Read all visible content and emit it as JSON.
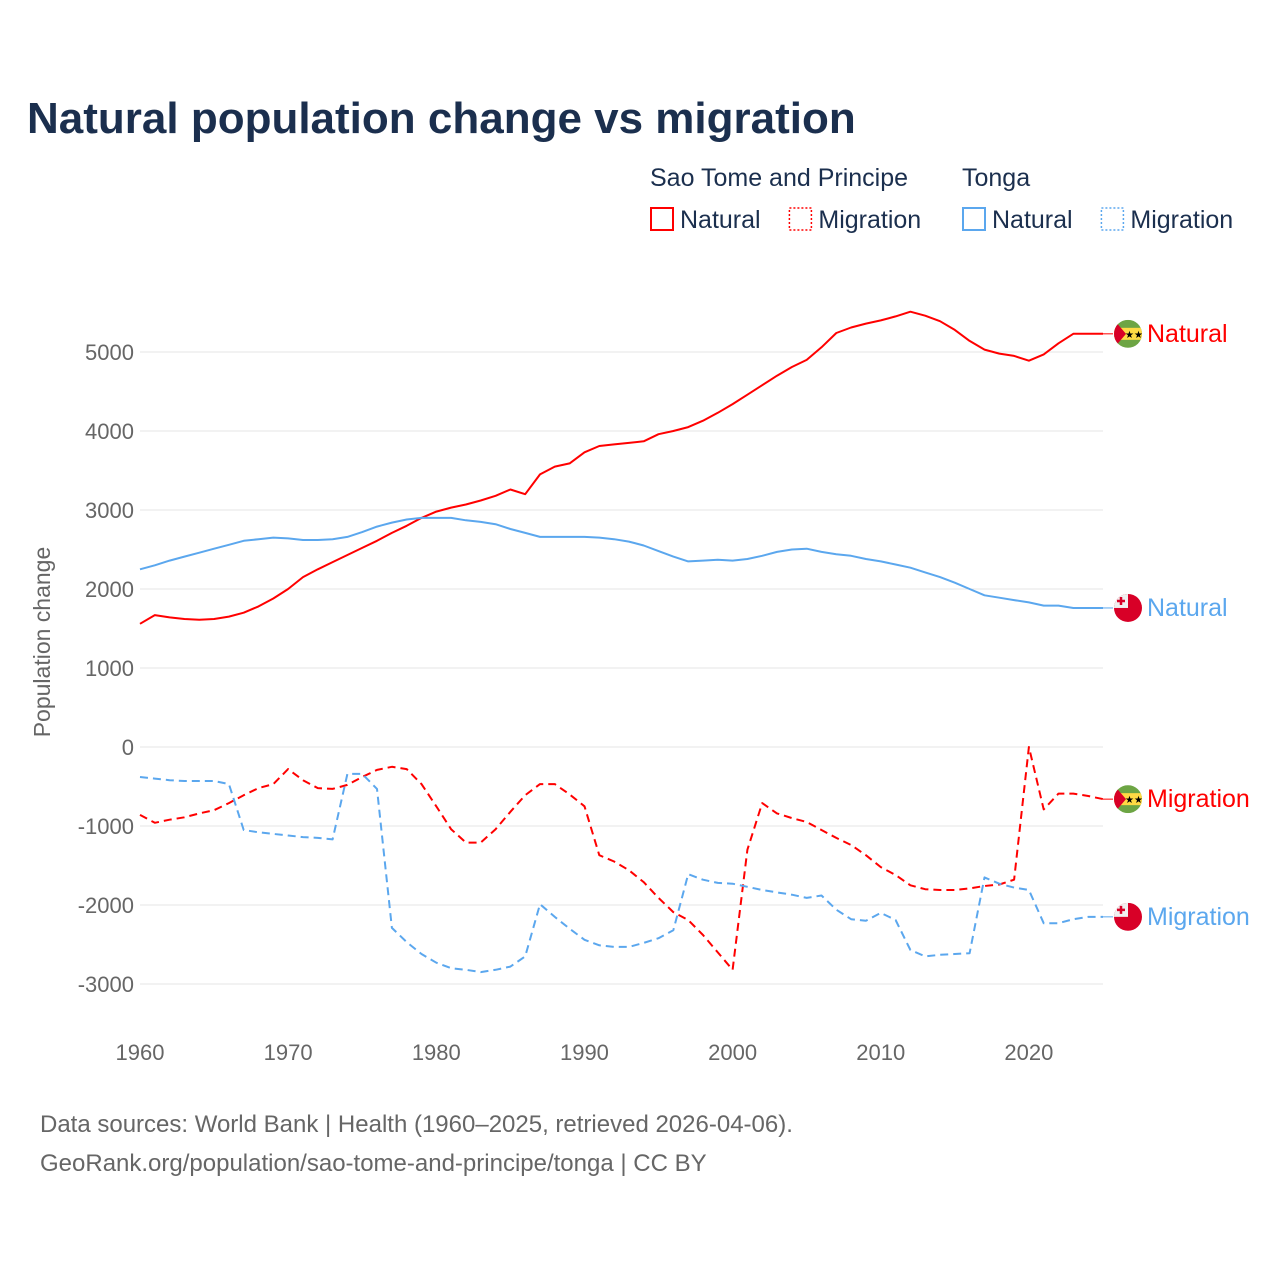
{
  "chart_data": {
    "type": "line",
    "title": "Natural population change vs migration",
    "ylabel": "Population change",
    "xlabel": "",
    "ylim": [
      -3200,
      5600
    ],
    "xlim": [
      1960,
      2025
    ],
    "yticks": [
      5000,
      4000,
      3000,
      2000,
      1000,
      0,
      -1000,
      -2000,
      -3000
    ],
    "ytick_labels": [
      "5000",
      "4000",
      "3000",
      "2000",
      "1000",
      "0",
      "-1000",
      "-2000",
      "-3000"
    ],
    "xticks": [
      1960,
      1970,
      1980,
      1990,
      2000,
      2010,
      2020
    ],
    "xtick_labels": [
      "1960",
      "1970",
      "1980",
      "1990",
      "2000",
      "2010",
      "2020"
    ],
    "grid": true,
    "legend_groups": [
      {
        "name": "Sao Tome and Principe",
        "items": [
          "Natural",
          "Migration"
        ]
      },
      {
        "name": "Tonga",
        "items": [
          "Natural",
          "Migration"
        ]
      }
    ],
    "x_start": 1960,
    "series": [
      {
        "name": "Sao Tome and Principe Natural",
        "label": "Natural",
        "color": "#ff0000",
        "dash": false,
        "flag": "stp",
        "values": [
          1560,
          1670,
          1640,
          1620,
          1610,
          1620,
          1650,
          1700,
          1780,
          1880,
          2000,
          2150,
          2250,
          2340,
          2430,
          2520,
          2610,
          2710,
          2800,
          2900,
          2980,
          3030,
          3070,
          3120,
          3180,
          3260,
          3200,
          3450,
          3550,
          3590,
          3730,
          3810,
          3830,
          3850,
          3870,
          3960,
          4000,
          4050,
          4130,
          4230,
          4340,
          4460,
          4580,
          4700,
          4810,
          4900,
          5060,
          5240,
          5310,
          5360,
          5400,
          5450,
          5510,
          5460,
          5390,
          5280,
          5140,
          5030,
          4980,
          4950,
          4890,
          4970,
          5110,
          5230,
          5230,
          5230
        ]
      },
      {
        "name": "Tonga Natural",
        "label": "Natural",
        "color": "#5ba7ee",
        "dash": false,
        "flag": "tonga",
        "values": [
          2250,
          2300,
          2360,
          2410,
          2460,
          2510,
          2560,
          2610,
          2630,
          2650,
          2640,
          2620,
          2620,
          2630,
          2660,
          2720,
          2790,
          2840,
          2880,
          2900,
          2900,
          2900,
          2870,
          2850,
          2820,
          2760,
          2710,
          2660,
          2660,
          2660,
          2660,
          2650,
          2630,
          2600,
          2550,
          2480,
          2410,
          2350,
          2360,
          2370,
          2360,
          2380,
          2420,
          2470,
          2500,
          2510,
          2470,
          2440,
          2420,
          2380,
          2350,
          2310,
          2270,
          2210,
          2150,
          2080,
          2000,
          1920,
          1890,
          1860,
          1830,
          1790,
          1790,
          1760,
          1760,
          1760
        ]
      },
      {
        "name": "Sao Tome and Principe Migration",
        "label": "Migration",
        "color": "#ff0000",
        "dash": true,
        "flag": "stp",
        "values": [
          -860,
          -960,
          -920,
          -890,
          -840,
          -800,
          -710,
          -610,
          -520,
          -470,
          -280,
          -420,
          -520,
          -530,
          -480,
          -380,
          -290,
          -250,
          -280,
          -470,
          -750,
          -1040,
          -1210,
          -1210,
          -1040,
          -820,
          -610,
          -470,
          -470,
          -600,
          -750,
          -1370,
          -1450,
          -1560,
          -1710,
          -1910,
          -2090,
          -2190,
          -2380,
          -2600,
          -2820,
          -1300,
          -710,
          -840,
          -900,
          -950,
          -1050,
          -1150,
          -1240,
          -1370,
          -1520,
          -1620,
          -1750,
          -1800,
          -1810,
          -1810,
          -1790,
          -1760,
          -1740,
          -1680,
          0,
          -790,
          -590,
          -590,
          -620,
          -660
        ]
      },
      {
        "name": "Tonga Migration",
        "label": "Migration",
        "color": "#5ba7ee",
        "dash": true,
        "flag": "tonga",
        "values": [
          -380,
          -400,
          -420,
          -430,
          -430,
          -430,
          -470,
          -1050,
          -1080,
          -1100,
          -1120,
          -1140,
          -1150,
          -1170,
          -340,
          -340,
          -530,
          -2290,
          -2470,
          -2620,
          -2730,
          -2800,
          -2820,
          -2850,
          -2820,
          -2780,
          -2650,
          -1990,
          -2150,
          -2300,
          -2440,
          -2510,
          -2530,
          -2530,
          -2480,
          -2420,
          -2320,
          -1610,
          -1680,
          -1720,
          -1730,
          -1770,
          -1810,
          -1840,
          -1870,
          -1910,
          -1880,
          -2060,
          -2180,
          -2200,
          -2100,
          -2190,
          -2570,
          -2650,
          -2630,
          -2620,
          -2610,
          -1650,
          -1730,
          -1780,
          -1810,
          -2230,
          -2230,
          -2180,
          -2150,
          -2150
        ]
      }
    ]
  },
  "footer": {
    "line1": "Data sources: World Bank | Health (1960–2025, retrieved 2026-04-06).",
    "line2": "GeoRank.org/population/sao-tome-and-principe/tonga | CC BY"
  }
}
